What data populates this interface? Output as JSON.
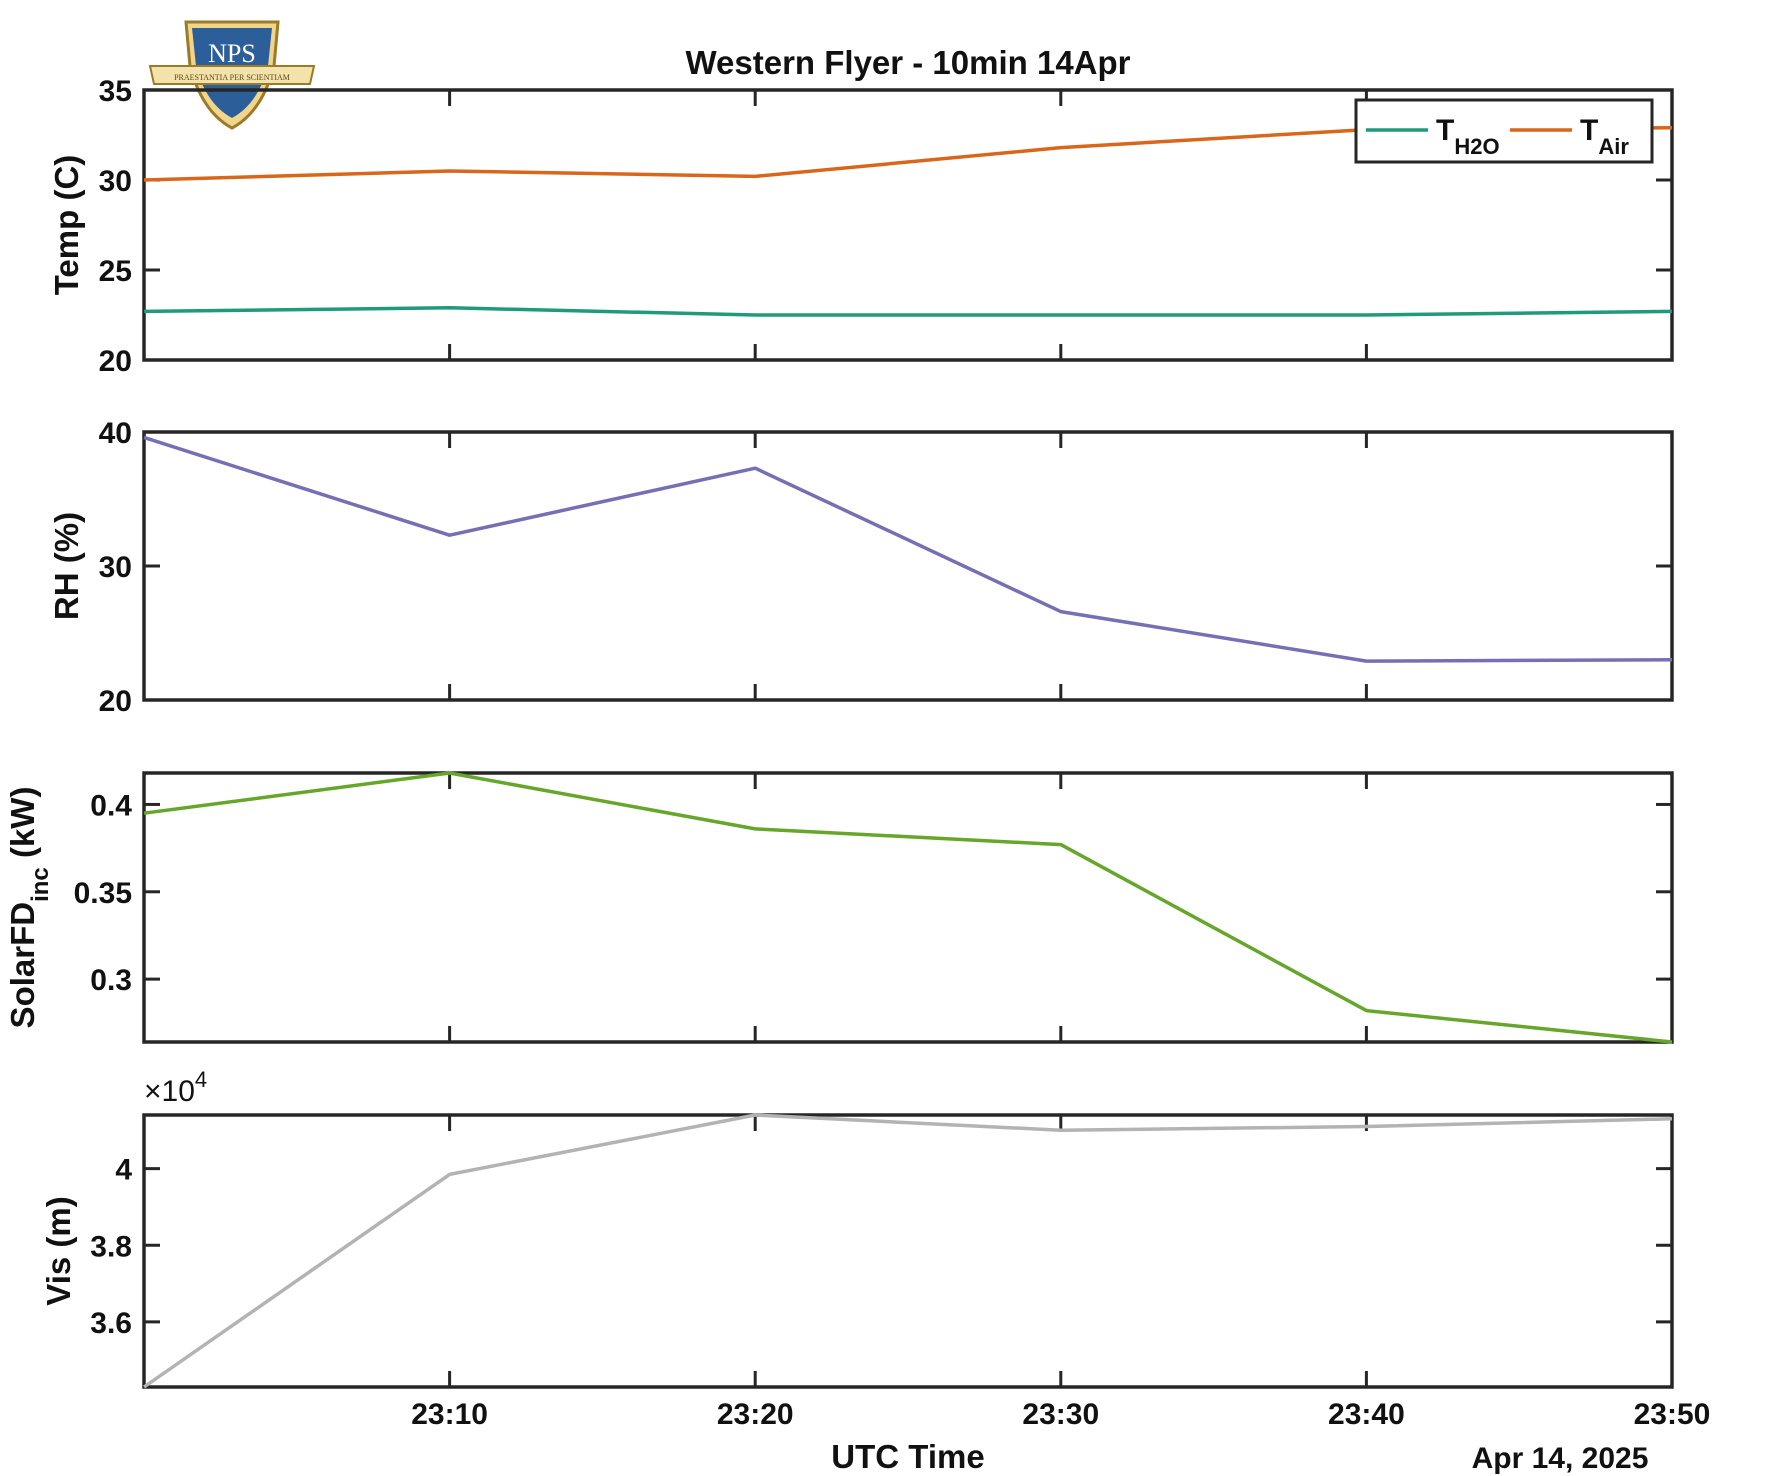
{
  "title": "Western Flyer - 10min 14Apr",
  "xlabel": "UTC Time",
  "date_label": "Apr 14, 2025",
  "logo": {
    "text": "NPS",
    "motto": "PRAESTANTIA PER SCIENTIAM"
  },
  "colors": {
    "h2o": "#1f9a7d",
    "air": "#d9661b",
    "rh": "#7570b3",
    "solar": "#66a62a",
    "vis": "#b3b3b3"
  },
  "x_ticks": [
    "23:10",
    "23:20",
    "23:30",
    "23:40",
    "23:50"
  ],
  "chart_data": [
    {
      "type": "line",
      "ylabel": "Temp (C)",
      "x": [
        "23:00",
        "23:10",
        "23:20",
        "23:30",
        "23:40",
        "23:50"
      ],
      "xlim": [
        "23:00",
        "23:50"
      ],
      "ylim": [
        20,
        35
      ],
      "yticks": [
        20,
        25,
        30,
        35
      ],
      "legend": {
        "placement": "top-right"
      },
      "series": [
        {
          "name": "T",
          "sub": "H2O",
          "color": "#1f9a7d",
          "values": [
            22.7,
            22.9,
            22.5,
            22.5,
            22.5,
            22.7
          ]
        },
        {
          "name": "T",
          "sub": "Air",
          "color": "#d9661b",
          "values": [
            30.0,
            30.5,
            30.2,
            31.8,
            32.8,
            32.9
          ]
        }
      ]
    },
    {
      "type": "line",
      "ylabel": "RH (%)",
      "x": [
        "23:00",
        "23:10",
        "23:20",
        "23:30",
        "23:40",
        "23:50"
      ],
      "xlim": [
        "23:00",
        "23:50"
      ],
      "ylim": [
        20,
        40
      ],
      "yticks": [
        20,
        30,
        40
      ],
      "series": [
        {
          "color": "#7570b3",
          "values": [
            39.6,
            32.3,
            37.3,
            26.6,
            22.9,
            23.0
          ]
        }
      ]
    },
    {
      "type": "line",
      "ylabel": "SolarFD",
      "ylabel_sub": "inc",
      "ylabel_unit": "(kW)",
      "x": [
        "23:00",
        "23:10",
        "23:20",
        "23:30",
        "23:40",
        "23:50"
      ],
      "xlim": [
        "23:00",
        "23:50"
      ],
      "ylim": [
        0.264,
        0.418
      ],
      "yticks": [
        0.3,
        0.35,
        0.4
      ],
      "ytick_labels": [
        "0.3",
        "0.35",
        "0.4"
      ],
      "series": [
        {
          "color": "#66a62a",
          "values": [
            0.395,
            0.418,
            0.386,
            0.377,
            0.282,
            0.264
          ]
        }
      ]
    },
    {
      "type": "line",
      "ylabel": "Vis (m)",
      "x": [
        "23:00",
        "23:10",
        "23:20",
        "23:30",
        "23:40",
        "23:50"
      ],
      "xlim": [
        "23:00",
        "23:50"
      ],
      "ylim": [
        34300,
        41400
      ],
      "yticks": [
        36000,
        38000,
        40000
      ],
      "ytick_labels": [
        "3.6",
        "3.8",
        "4"
      ],
      "exponent_base": "×10",
      "exponent_power": "4",
      "series": [
        {
          "color": "#b3b3b3",
          "values": [
            34300,
            39850,
            41400,
            41000,
            41100,
            41300
          ]
        }
      ]
    }
  ]
}
